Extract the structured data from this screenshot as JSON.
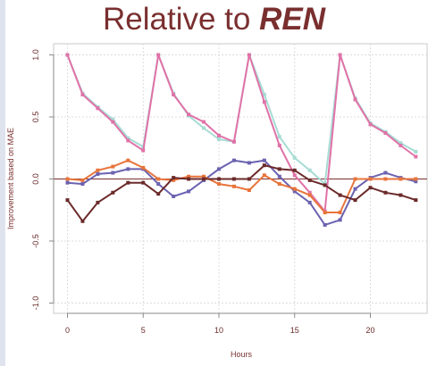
{
  "chart_data": {
    "type": "line",
    "title_prefix": "Relative to ",
    "title_emphasis": "REN",
    "xlabel": "Hours",
    "ylabel": "Improvement based on MAE",
    "xlim": [
      -1,
      23.5
    ],
    "ylim": [
      -1.08,
      1.08
    ],
    "x_ticks": [
      0,
      5,
      10,
      15,
      20
    ],
    "y_ticks": [
      1.0,
      0.5,
      0.0,
      -0.5,
      -1.0
    ],
    "y_tick_labels": [
      "1.0",
      "0.5",
      "0.0",
      "-0.5",
      "-1.0"
    ],
    "grid": true,
    "legend": false,
    "zero_line_color": "#7a2f2f",
    "x": [
      0,
      1,
      2,
      3,
      4,
      5,
      6,
      7,
      8,
      9,
      10,
      11,
      12,
      13,
      14,
      15,
      16,
      17,
      18,
      19,
      20,
      21,
      22,
      23
    ],
    "series": [
      {
        "color": "#a6dcd4",
        "values": [
          1.0,
          0.69,
          0.58,
          0.48,
          0.33,
          0.26,
          1.0,
          0.69,
          0.51,
          0.41,
          0.32,
          0.3,
          1.0,
          0.68,
          0.34,
          0.17,
          0.07,
          -0.04,
          1.0,
          0.65,
          0.45,
          0.38,
          0.29,
          0.22
        ]
      },
      {
        "color": "#e072a8",
        "values": [
          1.0,
          0.68,
          0.57,
          0.46,
          0.31,
          0.23,
          1.0,
          0.68,
          0.52,
          0.46,
          0.35,
          0.3,
          1.0,
          0.62,
          0.27,
          0.03,
          -0.11,
          -0.26,
          1.0,
          0.64,
          0.44,
          0.37,
          0.27,
          0.18
        ]
      },
      {
        "color": "#6b62b0",
        "values": [
          -0.03,
          -0.04,
          0.04,
          0.05,
          0.08,
          0.08,
          -0.04,
          -0.14,
          -0.1,
          -0.01,
          0.08,
          0.15,
          0.13,
          0.15,
          0.02,
          -0.1,
          -0.19,
          -0.37,
          -0.33,
          -0.08,
          0.01,
          0.05,
          0.01,
          -0.02
        ]
      },
      {
        "color": "#e8743b",
        "values": [
          0.0,
          -0.01,
          0.07,
          0.1,
          0.15,
          0.09,
          0.0,
          -0.01,
          0.02,
          0.02,
          -0.04,
          -0.06,
          -0.09,
          0.03,
          -0.04,
          -0.08,
          -0.13,
          -0.27,
          -0.27,
          0.0,
          0.0,
          0.0,
          0.0,
          0.0
        ]
      },
      {
        "color": "#6b2a2a",
        "values": [
          -0.17,
          -0.34,
          -0.19,
          -0.11,
          -0.03,
          -0.03,
          -0.12,
          0.01,
          0.0,
          0.0,
          0.0,
          0.0,
          0.0,
          0.11,
          0.08,
          0.07,
          -0.01,
          -0.05,
          -0.13,
          -0.17,
          -0.07,
          -0.11,
          -0.13,
          -0.17
        ]
      }
    ]
  }
}
